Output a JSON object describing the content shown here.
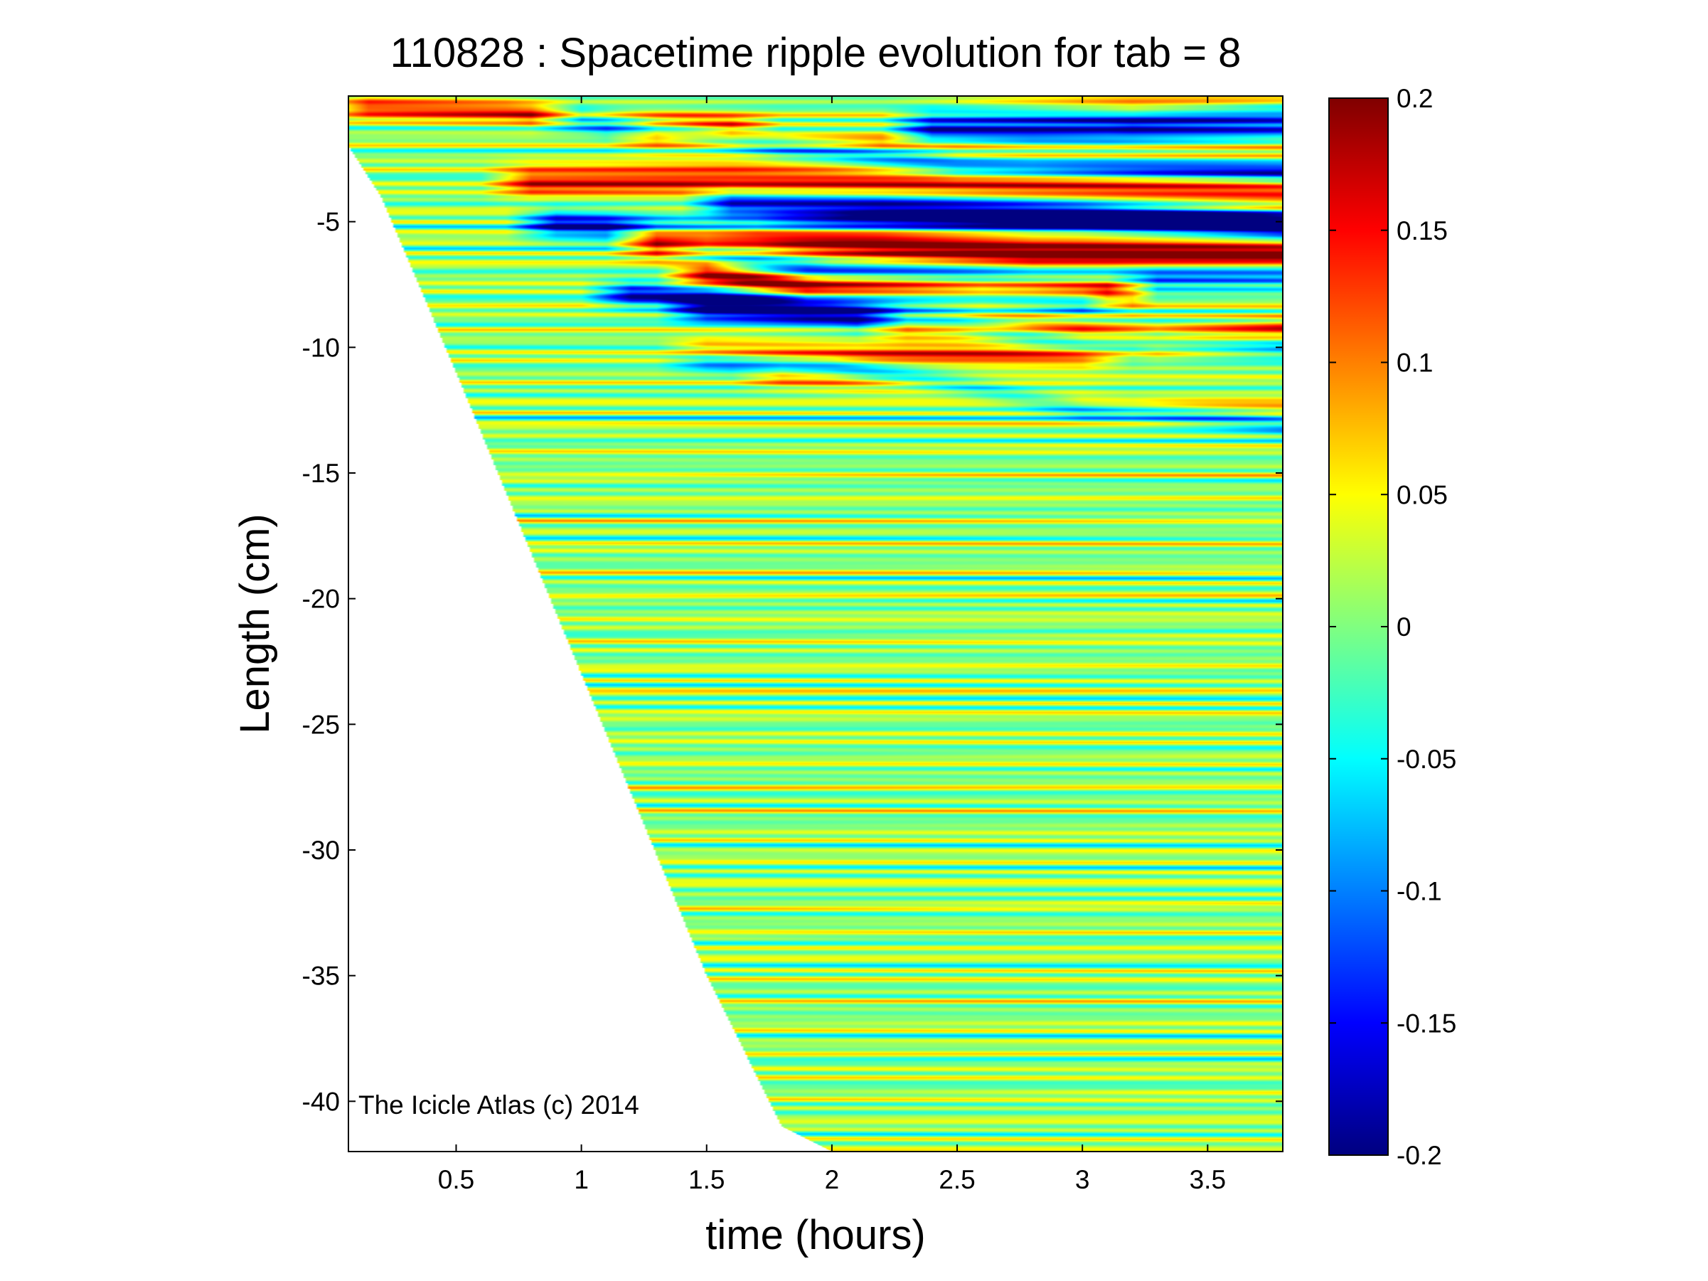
{
  "chart_data": {
    "type": "heatmap",
    "title": "110828 : Spacetime ripple evolution for tab = 8",
    "xlabel": "time (hours)",
    "ylabel": "Length (cm)",
    "xlim": [
      0.07,
      3.8
    ],
    "ylim": [
      -42,
      0
    ],
    "xticks": [
      0.5,
      1,
      1.5,
      2,
      2.5,
      3,
      3.5
    ],
    "xtick_labels": [
      "0.5",
      "1",
      "1.5",
      "2",
      "2.5",
      "3",
      "3.5"
    ],
    "yticks": [
      -5,
      -10,
      -15,
      -20,
      -25,
      -30,
      -35,
      -40
    ],
    "ytick_labels": [
      "-5",
      "-10",
      "-15",
      "-20",
      "-25",
      "-30",
      "-35",
      "-40"
    ],
    "colorbar": {
      "colormap": "jet",
      "clim": [
        -0.2,
        0.2
      ],
      "ticks": [
        0.2,
        0.15,
        0.1,
        0.05,
        0,
        -0.05,
        -0.1,
        -0.15,
        -0.2
      ],
      "tick_labels": [
        "0.2",
        "0.15",
        "0.1",
        "0.05",
        "0",
        "-0.05",
        "-0.1",
        "-0.15",
        "-0.2"
      ]
    },
    "grid": false,
    "data_boundary": {
      "description": "data exists only for times after the lower icicle tip reached each length",
      "time": [
        0.07,
        0.2,
        0.5,
        1.0,
        1.5,
        1.8,
        2.0,
        3.8
      ],
      "length": [
        -2.0,
        -4.0,
        -11.0,
        -23.0,
        -35.0,
        -41.0,
        -42.0,
        -42.0
      ]
    },
    "ridges": [
      {
        "sign": 1,
        "amplitude": 0.14,
        "width_cm": 0.45,
        "points": [
          [
            0.15,
            -0.45
          ],
          [
            0.7,
            -0.6
          ],
          [
            1.1,
            -0.9
          ],
          [
            1.6,
            -1.2
          ]
        ]
      },
      {
        "sign": -1,
        "amplitude": 0.19,
        "width_cm": 0.5,
        "points": [
          [
            1.0,
            -0.9
          ],
          [
            1.8,
            -2.0
          ],
          [
            2.5,
            -2.7
          ],
          [
            3.8,
            -3.0
          ]
        ]
      },
      {
        "sign": 1,
        "amplitude": 0.17,
        "width_cm": 0.45,
        "points": [
          [
            2.4,
            -0.4
          ],
          [
            3.2,
            -0.4
          ],
          [
            3.8,
            -0.3
          ]
        ]
      },
      {
        "sign": -1,
        "amplitude": 0.2,
        "width_cm": 0.5,
        "points": [
          [
            2.4,
            -0.55
          ],
          [
            3.2,
            -0.8
          ],
          [
            3.8,
            -0.6
          ]
        ]
      },
      {
        "sign": 1,
        "amplitude": 0.15,
        "width_cm": 0.5,
        "points": [
          [
            1.3,
            -1.6
          ],
          [
            2.0,
            -2.0
          ],
          [
            2.8,
            -2.2
          ],
          [
            3.8,
            -2.0
          ]
        ]
      },
      {
        "sign": -1,
        "amplitude": 0.18,
        "width_cm": 0.5,
        "points": [
          [
            2.4,
            -1.5
          ],
          [
            3.1,
            -1.7
          ],
          [
            3.8,
            -1.6
          ]
        ]
      },
      {
        "sign": 1,
        "amplitude": 0.15,
        "width_cm": 0.6,
        "points": [
          [
            0.8,
            -3.4
          ],
          [
            1.6,
            -3.3
          ],
          [
            2.4,
            -3.4
          ],
          [
            3.8,
            -3.8
          ]
        ]
      },
      {
        "sign": -1,
        "amplitude": 0.16,
        "width_cm": 0.5,
        "points": [
          [
            1.6,
            -4.3
          ],
          [
            2.2,
            -4.4
          ],
          [
            3.0,
            -4.7
          ],
          [
            3.8,
            -5.1
          ]
        ]
      },
      {
        "sign": -1,
        "amplitude": 0.18,
        "width_cm": 0.55,
        "points": [
          [
            0.9,
            -5.1
          ],
          [
            1.5,
            -5.3
          ],
          [
            2.2,
            -5.0
          ],
          [
            3.0,
            -5.0
          ],
          [
            3.8,
            -5.2
          ]
        ]
      },
      {
        "sign": 1,
        "amplitude": 0.23,
        "width_cm": 0.65,
        "points": [
          [
            1.3,
            -5.7
          ],
          [
            1.7,
            -5.6
          ],
          [
            2.2,
            -5.9
          ],
          [
            2.8,
            -6.2
          ],
          [
            3.8,
            -6.3
          ]
        ]
      },
      {
        "sign": -1,
        "amplitude": 0.16,
        "width_cm": 0.5,
        "points": [
          [
            1.5,
            -6.5
          ],
          [
            2.0,
            -7.0
          ],
          [
            2.8,
            -7.2
          ],
          [
            3.8,
            -7.1
          ]
        ]
      },
      {
        "sign": 1,
        "amplitude": 0.24,
        "width_cm": 0.55,
        "points": [
          [
            1.5,
            -7.0
          ],
          [
            1.9,
            -7.6
          ],
          [
            2.5,
            -7.7
          ],
          [
            3.1,
            -7.7
          ]
        ]
      },
      {
        "sign": -1,
        "amplitude": 0.17,
        "width_cm": 0.5,
        "points": [
          [
            1.2,
            -7.9
          ],
          [
            1.9,
            -8.2
          ],
          [
            2.6,
            -8.0
          ],
          [
            3.0,
            -8.2
          ]
        ]
      },
      {
        "sign": 1,
        "amplitude": 0.17,
        "width_cm": 0.6,
        "points": [
          [
            2.3,
            -9.1
          ],
          [
            2.8,
            -9.3
          ],
          [
            3.3,
            -9.8
          ],
          [
            3.8,
            -9.5
          ]
        ]
      },
      {
        "sign": -1,
        "amplitude": 0.17,
        "width_cm": 0.5,
        "points": [
          [
            1.5,
            -8.5
          ],
          [
            2.0,
            -8.7
          ],
          [
            2.5,
            -9.1
          ],
          [
            3.0,
            -9.8
          ],
          [
            3.8,
            -9.9
          ]
        ]
      },
      {
        "sign": 1,
        "amplitude": 0.12,
        "width_cm": 0.45,
        "points": [
          [
            1.5,
            -10.1
          ],
          [
            2.2,
            -10.3
          ],
          [
            3.0,
            -10.4
          ]
        ]
      },
      {
        "sign": -1,
        "amplitude": 0.12,
        "width_cm": 0.45,
        "points": [
          [
            1.5,
            -10.5
          ],
          [
            2.0,
            -10.8
          ],
          [
            2.5,
            -11.5
          ],
          [
            3.0,
            -12.4
          ],
          [
            3.8,
            -13.0
          ]
        ]
      },
      {
        "sign": 1,
        "amplitude": 0.09,
        "width_cm": 0.45,
        "points": [
          [
            1.8,
            -11.2
          ],
          [
            2.5,
            -11.6
          ],
          [
            3.2,
            -12.4
          ],
          [
            3.8,
            -12.5
          ]
        ]
      }
    ]
  },
  "watermark": "The Icicle Atlas (c) 2014"
}
